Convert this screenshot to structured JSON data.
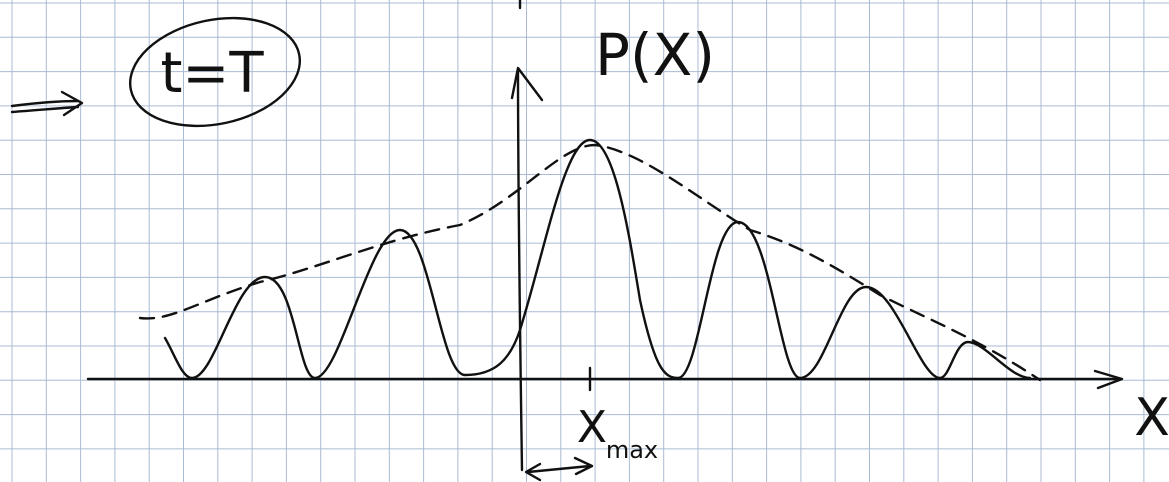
{
  "labels": {
    "time": "t=T",
    "y_axis": "P(X)",
    "x_axis": "X",
    "x_max": "X",
    "x_max_sub": "max"
  }
}
